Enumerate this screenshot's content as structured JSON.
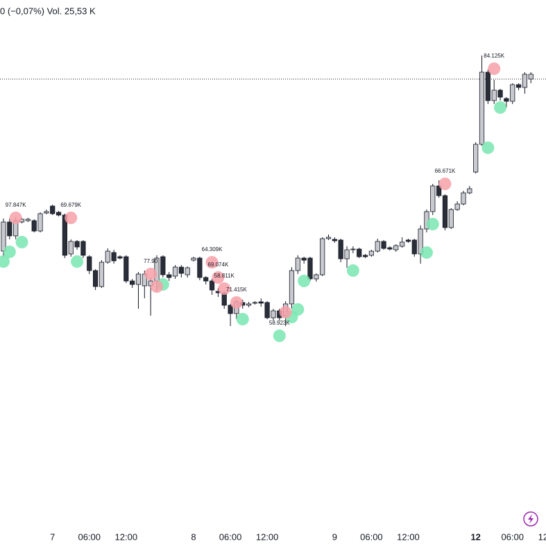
{
  "chart_data": {
    "type": "candlestick",
    "header": "0 (−0,07%)  Vol. 25,53 K",
    "categories": [
      null,
      null,
      null,
      null,
      null,
      null,
      null,
      null,
      null,
      null,
      null,
      null,
      null,
      null,
      null,
      null,
      null,
      null,
      null,
      null,
      null,
      null,
      null,
      null,
      null,
      null,
      null,
      null,
      null,
      null,
      null,
      null,
      null,
      null,
      null,
      null,
      null,
      null,
      null,
      null,
      null,
      null,
      null,
      null,
      null,
      null,
      null,
      null,
      null,
      null,
      null,
      null,
      null,
      null,
      null,
      null,
      null,
      null,
      null,
      null,
      null,
      null,
      null,
      null,
      null,
      null,
      null,
      null,
      null,
      null,
      null,
      null,
      null,
      null,
      null,
      null,
      null,
      null,
      null,
      null,
      null,
      null,
      null,
      null,
      null,
      null,
      null
    ],
    "open": [
      438,
      480,
      460,
      480,
      482,
      482,
      467,
      493,
      503,
      494,
      490,
      434,
      452,
      452,
      430,
      410,
      387,
      422,
      436,
      430,
      430,
      395,
      390,
      388,
      388,
      395,
      430,
      404,
      402,
      415,
      404,
      425,
      428,
      400,
      395,
      380,
      378,
      360,
      348,
      364,
      360,
      363,
      365,
      364,
      342,
      352,
      344,
      362,
      410,
      428,
      428,
      398,
      404,
      456,
      455,
      454,
      427,
      440,
      441,
      432,
      432,
      438,
      452,
      443,
      440,
      445,
      454,
      454,
      434,
      470,
      495,
      532,
      518,
      472,
      498,
      506,
      522,
      552,
      592,
      696,
      655,
      670,
      658,
      654,
      678,
      674,
      686
    ],
    "high": [
      485,
      485,
      487,
      486,
      486,
      484,
      494,
      498,
      505,
      496,
      492,
      455,
      454,
      454,
      432,
      412,
      425,
      442,
      440,
      432,
      432,
      398,
      408,
      410,
      400,
      432,
      432,
      408,
      418,
      418,
      416,
      430,
      430,
      402,
      398,
      385,
      380,
      362,
      368,
      368,
      365,
      366,
      370,
      366,
      355,
      355,
      366,
      415,
      432,
      430,
      430,
      406,
      458,
      462,
      458,
      456,
      445,
      445,
      443,
      434,
      440,
      456,
      454,
      445,
      448,
      458,
      456,
      456,
      475,
      498,
      535,
      540,
      520,
      500,
      510,
      525,
      532,
      595,
      720,
      700,
      685,
      672,
      660,
      680,
      680,
      696,
      696
    ],
    "low": [
      430,
      455,
      455,
      478,
      480,
      465,
      465,
      491,
      490,
      488,
      428,
      430,
      440,
      428,
      405,
      382,
      385,
      420,
      420,
      426,
      392,
      385,
      355,
      370,
      345,
      380,
      400,
      395,
      398,
      400,
      400,
      423,
      396,
      390,
      375,
      372,
      355,
      330,
      340,
      355,
      357,
      361,
      358,
      340,
      338,
      338,
      330,
      355,
      405,
      420,
      395,
      394,
      402,
      454,
      450,
      422,
      414,
      435,
      428,
      428,
      430,
      436,
      440,
      439,
      437,
      443,
      450,
      430,
      420,
      465,
      490,
      515,
      468,
      470,
      496,
      504,
      520,
      550,
      590,
      650,
      650,
      655,
      645,
      650,
      670,
      665,
      680
    ],
    "close": [
      480,
      460,
      482,
      484,
      484,
      467,
      492,
      495,
      492,
      490,
      432,
      452,
      444,
      432,
      410,
      387,
      422,
      438,
      424,
      428,
      395,
      390,
      405,
      405,
      395,
      428,
      404,
      400,
      415,
      406,
      414,
      428,
      400,
      395,
      382,
      378,
      360,
      348,
      365,
      360,
      362,
      364,
      363,
      342,
      352,
      342,
      362,
      410,
      428,
      425,
      398,
      404,
      456,
      458,
      453,
      427,
      440,
      441,
      430,
      430,
      438,
      452,
      442,
      441,
      446,
      451,
      452,
      434,
      470,
      495,
      532,
      518,
      472,
      498,
      506,
      522,
      528,
      592,
      696,
      655,
      670,
      660,
      654,
      678,
      674,
      693,
      693
    ],
    "up_color": "#c9cad0",
    "down_color": "#2a2e39",
    "wick_color": "#131722",
    "ylim": [
      0,
      800
    ],
    "price_line": 686,
    "xticks": [
      {
        "value": 8,
        "label": "7"
      },
      {
        "value": 14,
        "label": "06:00"
      },
      {
        "value": 20,
        "label": "12:00"
      },
      {
        "value": 31,
        "label": "8"
      },
      {
        "value": 37,
        "label": "06:00"
      },
      {
        "value": 43,
        "label": "12:00"
      },
      {
        "value": 54,
        "label": "9"
      },
      {
        "value": 60,
        "label": "06:00"
      },
      {
        "value": 66,
        "label": "12:00"
      },
      {
        "value": 77,
        "label": "12"
      },
      {
        "value": 83,
        "label": "06:00"
      },
      {
        "value": 88,
        "label": "12"
      }
    ],
    "high_color": "#f7a0a8",
    "low_color": "#79e6b1",
    "highs": {
      "index": [
        2,
        11,
        24,
        25,
        34,
        35,
        36,
        38,
        46,
        72,
        80
      ],
      "values": [
        486,
        486,
        405,
        387,
        422,
        400,
        384,
        364,
        350,
        535,
        701
      ],
      "labels": [
        "97.847K",
        "69.679K",
        "77.90",
        null,
        "64.309K",
        "69.074K",
        "58.811K",
        "71.415K",
        null,
        "66.671K",
        "84.125K"
      ]
    },
    "lows": {
      "index": [
        0,
        1,
        3,
        12,
        26,
        39,
        45,
        47,
        48,
        49,
        57,
        69,
        70,
        79,
        81
      ],
      "values": [
        423,
        437,
        451,
        423,
        390,
        340,
        316,
        343,
        354,
        395,
        410,
        436,
        477,
        587,
        645
      ],
      "labels": [
        null,
        null,
        null,
        null,
        null,
        null,
        "58.923K",
        null,
        null,
        null,
        null,
        null,
        null,
        null,
        null
      ]
    }
  }
}
